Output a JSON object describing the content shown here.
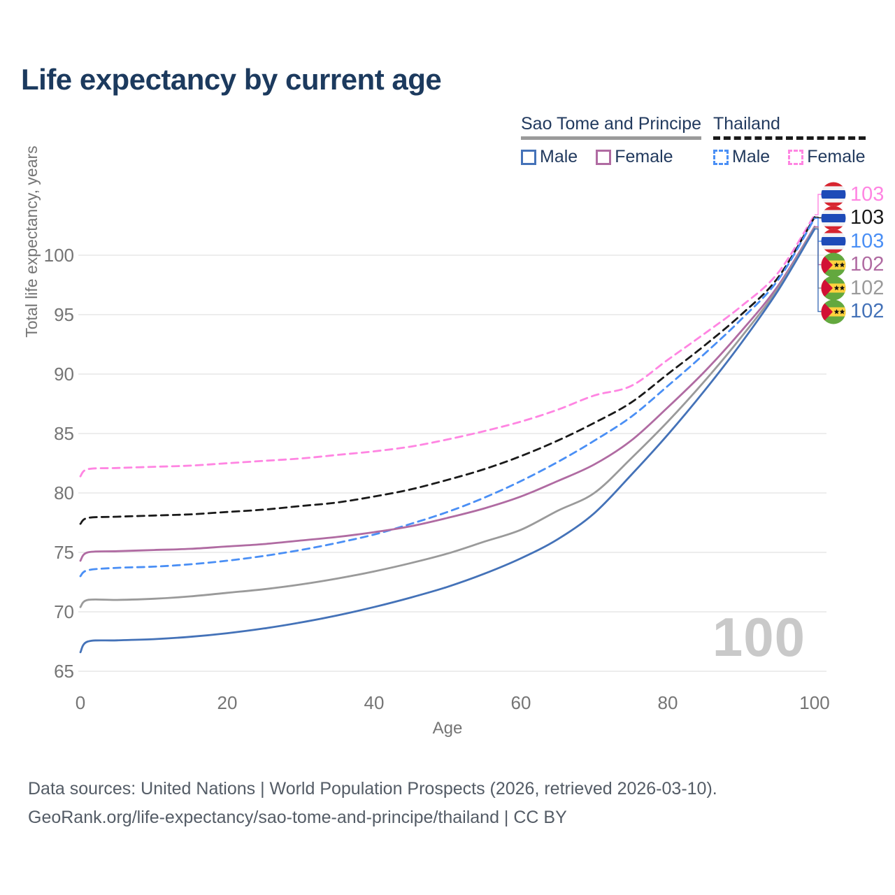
{
  "header": {
    "title": "Life expectancy by current age"
  },
  "legend": {
    "groups": [
      {
        "label": "Sao Tome and Principe",
        "line_style": "solid",
        "line_color": "#9a9a9a",
        "items": [
          {
            "label": "Male",
            "color": "#4472b8",
            "style": "solid"
          },
          {
            "label": "Female",
            "color": "#b06ba2",
            "style": "solid"
          }
        ]
      },
      {
        "label": "Thailand",
        "line_style": "dashed",
        "line_color": "#1a1a1a",
        "items": [
          {
            "label": "Male",
            "color": "#4a8ff5",
            "style": "dashed"
          },
          {
            "label": "Female",
            "color": "#ff85e2",
            "style": "dashed"
          }
        ]
      }
    ]
  },
  "axes": {
    "y_title": "Total life expectancy, years",
    "x_title": "Age"
  },
  "chart_data": {
    "type": "line",
    "title": "Life expectancy by current age",
    "xlabel": "Age",
    "ylabel": "Total life expectancy, years",
    "xlim": [
      0,
      100
    ],
    "ylim": [
      65,
      100
    ],
    "x_ticks": [
      0,
      20,
      40,
      60,
      80,
      100
    ],
    "y_ticks": [
      65,
      70,
      75,
      80,
      85,
      90,
      95,
      100
    ],
    "grid": "horizontal",
    "legend_position": "top-right",
    "age_indicator": "100",
    "x": [
      0,
      1,
      5,
      10,
      15,
      20,
      25,
      30,
      35,
      40,
      45,
      50,
      55,
      60,
      65,
      70,
      75,
      80,
      85,
      90,
      95,
      100
    ],
    "series": [
      {
        "name": "Thailand Female",
        "country": "Thailand",
        "sex": "Female",
        "style": "dashed",
        "color": "#ff85e2",
        "flag": "th",
        "end_label": "103",
        "values": [
          81.4,
          82.0,
          82.1,
          82.2,
          82.3,
          82.5,
          82.7,
          82.9,
          83.2,
          83.5,
          83.9,
          84.5,
          85.2,
          86.0,
          87.0,
          88.2,
          89.0,
          91.2,
          93.4,
          95.7,
          98.5,
          103.4
        ]
      },
      {
        "name": "Thailand Both sexes",
        "country": "Thailand",
        "sex": "Both",
        "style": "dashed",
        "color": "#1a1a1a",
        "flag": "th",
        "end_label": "103",
        "values": [
          77.4,
          77.9,
          78.0,
          78.1,
          78.2,
          78.4,
          78.6,
          78.9,
          79.2,
          79.7,
          80.3,
          81.1,
          82.0,
          83.1,
          84.4,
          85.9,
          87.6,
          90.0,
          92.4,
          95.0,
          98.1,
          103.2
        ]
      },
      {
        "name": "Thailand Male",
        "country": "Thailand",
        "sex": "Male",
        "style": "dashed",
        "color": "#4a8ff5",
        "flag": "th",
        "end_label": "103",
        "values": [
          73.0,
          73.5,
          73.7,
          73.8,
          74.0,
          74.3,
          74.7,
          75.2,
          75.8,
          76.5,
          77.4,
          78.4,
          79.6,
          81.0,
          82.6,
          84.4,
          86.4,
          89.0,
          91.7,
          94.6,
          97.9,
          103.1
        ]
      },
      {
        "name": "Sao Tome and Principe Female",
        "country": "Sao Tome and Principe",
        "sex": "Female",
        "style": "solid",
        "color": "#b06ba2",
        "flag": "st",
        "end_label": "102",
        "values": [
          74.3,
          75.0,
          75.1,
          75.2,
          75.3,
          75.5,
          75.7,
          76.0,
          76.3,
          76.7,
          77.2,
          77.9,
          78.7,
          79.7,
          81.0,
          82.4,
          84.4,
          87.2,
          90.2,
          93.6,
          97.4,
          102.4
        ]
      },
      {
        "name": "Sao Tome and Principe Both sexes",
        "country": "Sao Tome and Principe",
        "sex": "Both",
        "style": "solid",
        "color": "#9a9a9a",
        "flag": "st",
        "end_label": "102",
        "values": [
          70.4,
          71.0,
          71.0,
          71.1,
          71.3,
          71.6,
          71.9,
          72.3,
          72.8,
          73.4,
          74.1,
          74.9,
          75.9,
          76.9,
          78.5,
          80.0,
          82.9,
          86.0,
          89.4,
          93.1,
          97.2,
          102.3
        ]
      },
      {
        "name": "Sao Tome and Principe Male",
        "country": "Sao Tome and Principe",
        "sex": "Male",
        "style": "solid",
        "color": "#4472b8",
        "flag": "st",
        "end_label": "102",
        "values": [
          66.6,
          67.5,
          67.6,
          67.7,
          67.9,
          68.2,
          68.6,
          69.1,
          69.7,
          70.4,
          71.2,
          72.1,
          73.2,
          74.5,
          76.1,
          78.3,
          81.5,
          84.9,
          88.6,
          92.6,
          97.0,
          102.2
        ]
      }
    ]
  },
  "footer": {
    "line1": "Data sources: United Nations | World Population Prospects (2026, retrieved 2026-03-10).",
    "line2": "GeoRank.org/life-expectancy/sao-tome-and-principe/thailand | CC BY"
  }
}
